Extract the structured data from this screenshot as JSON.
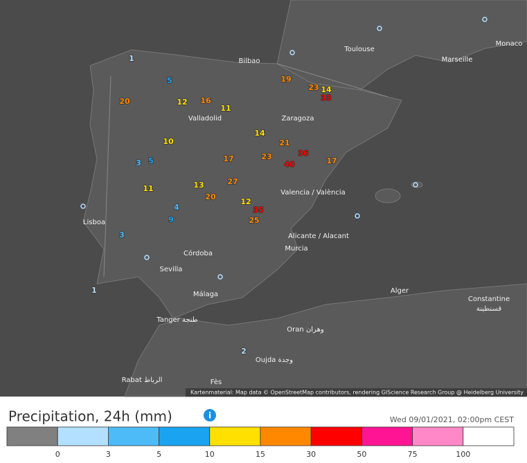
{
  "map": {
    "attribution": "Kartenmaterial: Map data © OpenStreetMap contributors, rendering GIScience Research Group @ Heidelberg University",
    "cities": [
      "Toulouse",
      "Marseille",
      "Monaco",
      "Bilbao",
      "Valladolid",
      "Zaragoza",
      "Lisboa",
      "Valencia / València",
      "Córdoba",
      "Sevilla",
      "Málaga",
      "Alicante / Alacant",
      "Murcia",
      "Alger",
      "Constantine",
      "قسنطينة",
      "Oran وهران",
      "Tanger طنجة",
      "Rabat الرباط",
      "Fès",
      "Oujda وجدة"
    ],
    "stations": [
      20,
      12,
      16,
      11,
      10,
      13,
      20,
      27,
      35,
      25,
      40,
      36,
      21,
      23,
      33,
      14,
      19,
      17,
      1,
      3,
      5,
      9,
      4,
      2,
      0,
      0,
      0,
      0,
      0,
      0,
      0,
      0,
      3,
      5,
      1,
      12,
      14,
      17,
      23,
      11
    ]
  },
  "legend": {
    "title": "Precipitation, 24h (mm)",
    "timestamp": "Wed 09/01/2021, 02:00pm CEST",
    "colors": [
      "#808080",
      "#b3e0ff",
      "#4dbbf7",
      "#1aa3f0",
      "#ffe000",
      "#ff8800",
      "#ff0000",
      "#ff1493",
      "#ff88c8",
      "#ffffff"
    ],
    "ticks": [
      0,
      3,
      5,
      10,
      15,
      30,
      50,
      75,
      100
    ]
  }
}
